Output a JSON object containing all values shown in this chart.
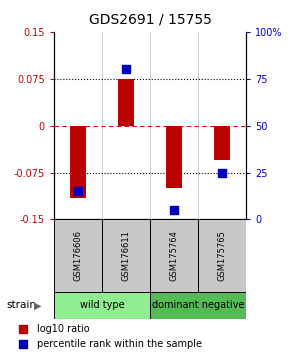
{
  "title": "GDS2691 / 15755",
  "samples": [
    "GSM176606",
    "GSM176611",
    "GSM175764",
    "GSM175765"
  ],
  "log10_ratio": [
    -0.115,
    0.075,
    -0.1,
    -0.055
  ],
  "percentile_rank": [
    15,
    80,
    5,
    25
  ],
  "strain_groups": [
    {
      "label": "wild type",
      "samples": [
        0,
        1
      ],
      "color": "#90EE90"
    },
    {
      "label": "dominant negative",
      "samples": [
        2,
        3
      ],
      "color": "#55BB55"
    }
  ],
  "ylim_left": [
    -0.15,
    0.15
  ],
  "ylim_right": [
    0,
    100
  ],
  "yticks_left": [
    -0.15,
    -0.075,
    0,
    0.075,
    0.15
  ],
  "yticks_right": [
    0,
    25,
    50,
    75,
    100
  ],
  "ytick_labels_left": [
    "-0.15",
    "-0.075",
    "0",
    "0.075",
    "0.15"
  ],
  "ytick_labels_right": [
    "0",
    "25",
    "50",
    "75",
    "100%"
  ],
  "hlines": [
    0.075,
    0,
    -0.075
  ],
  "hline_colors": [
    "black",
    "red",
    "black"
  ],
  "bar_color": "#BB0000",
  "dot_color": "#0000BB",
  "bar_width": 0.35,
  "dot_size": 30,
  "legend_items": [
    {
      "color": "#BB0000",
      "label": "log10 ratio",
      "marker": "s"
    },
    {
      "color": "#0000BB",
      "label": "percentile rank within the sample",
      "marker": "s"
    }
  ],
  "strain_label": "strain",
  "sample_box_color": "#C8C8C8",
  "font_color_left": "#CC0000",
  "font_color_right": "#0000CC"
}
